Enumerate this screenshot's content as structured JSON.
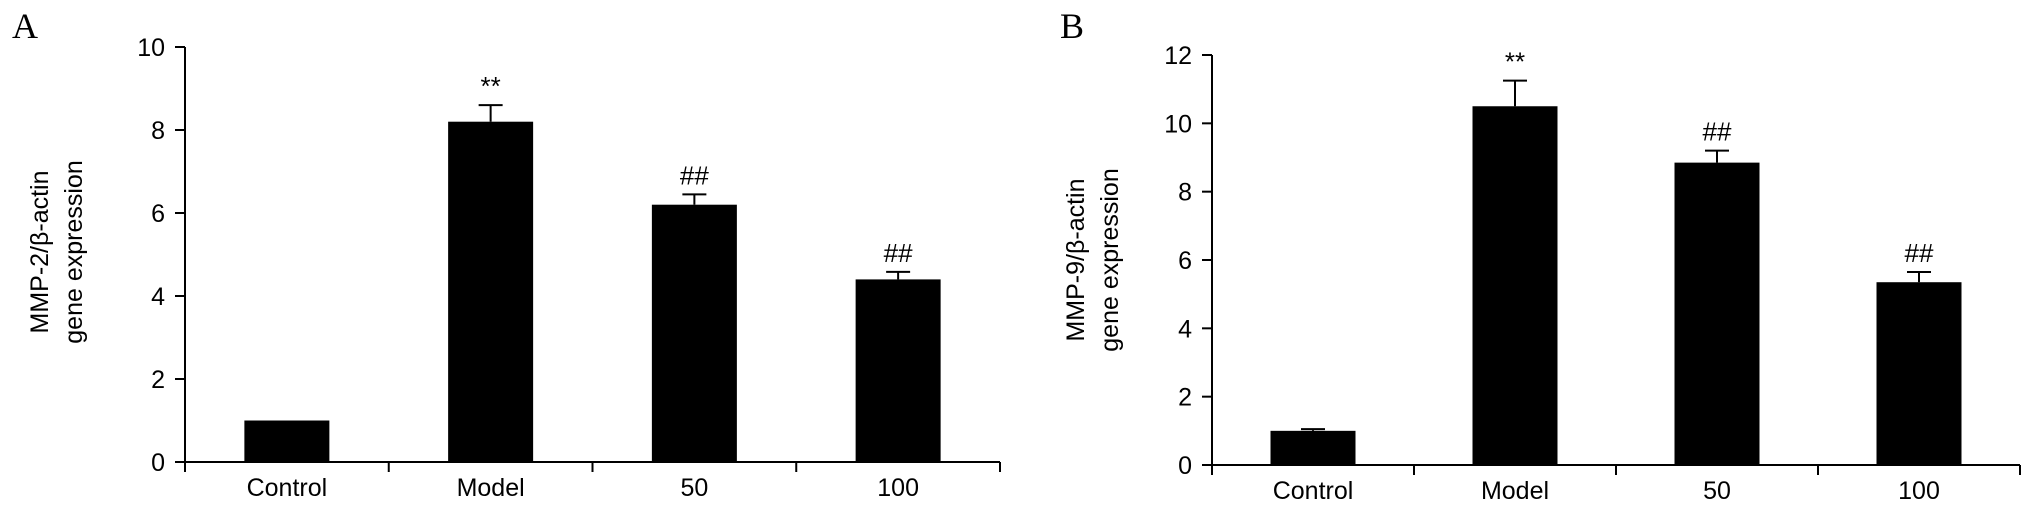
{
  "chart_data": [
    {
      "panel": "A",
      "type": "bar",
      "title": "",
      "xlabel": "",
      "ylabel_lines": [
        "MMP-2/β-actin",
        "gene expression"
      ],
      "categories": [
        "Control",
        "Model",
        "50",
        "100"
      ],
      "values": [
        1.0,
        8.2,
        6.2,
        4.4
      ],
      "errors": [
        0.0,
        0.4,
        0.25,
        0.18
      ],
      "annotations": [
        "",
        "**",
        "##",
        "##"
      ],
      "ylim": [
        0,
        10
      ],
      "yticks": [
        0,
        2,
        4,
        6,
        8,
        10
      ],
      "grid": false,
      "bar_color": "#000000"
    },
    {
      "panel": "B",
      "type": "bar",
      "title": "",
      "xlabel": "",
      "ylabel_lines": [
        "MMP-9/β-actin",
        "gene expression"
      ],
      "categories": [
        "Control",
        "Model",
        "50",
        "100"
      ],
      "values": [
        1.0,
        10.5,
        8.85,
        5.35
      ],
      "errors": [
        0.05,
        0.75,
        0.35,
        0.3
      ],
      "annotations": [
        "",
        "**",
        "##",
        "##"
      ],
      "ylim": [
        0,
        12
      ],
      "yticks": [
        0,
        2,
        4,
        6,
        8,
        10,
        12
      ],
      "grid": false,
      "bar_color": "#000000"
    }
  ]
}
